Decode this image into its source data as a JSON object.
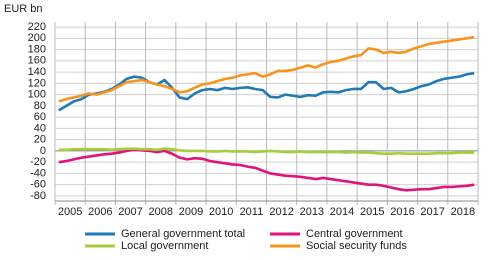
{
  "chart_data": {
    "type": "line",
    "y_label": "EUR bn",
    "categories": [
      "2005",
      null,
      null,
      null,
      "2006",
      null,
      null,
      null,
      "2007",
      null,
      null,
      null,
      "2008",
      null,
      null,
      null,
      "2009",
      null,
      null,
      null,
      "2010",
      null,
      null,
      null,
      "2011",
      null,
      null,
      null,
      "2012",
      null,
      null,
      null,
      "2013",
      null,
      null,
      null,
      "2014",
      null,
      null,
      null,
      "2015",
      null,
      null,
      null,
      "2016",
      null,
      null,
      null,
      "2017",
      null,
      null,
      null,
      "2018",
      null,
      null,
      null
    ],
    "series": [
      {
        "name": "General government total",
        "color": "#1f7ab5",
        "values": [
          72,
          80,
          88,
          92,
          100,
          102,
          105,
          110,
          118,
          128,
          132,
          130,
          122,
          118,
          126,
          112,
          95,
          92,
          102,
          108,
          110,
          108,
          112,
          110,
          112,
          113,
          110,
          108,
          96,
          95,
          100,
          98,
          96,
          99,
          98,
          104,
          105,
          104,
          108,
          110,
          110,
          122,
          122,
          110,
          112,
          104,
          106,
          110,
          115,
          118,
          124,
          128,
          130,
          132,
          136,
          138
        ]
      },
      {
        "name": "Central government",
        "color": "#e0147d",
        "values": [
          -20,
          -18,
          -15,
          -12,
          -10,
          -8,
          -6,
          -5,
          -3,
          0,
          2,
          1,
          0,
          -2,
          0,
          -5,
          -12,
          -15,
          -13,
          -14,
          -18,
          -20,
          -22,
          -24,
          -25,
          -28,
          -30,
          -35,
          -40,
          -42,
          -44,
          -45,
          -46,
          -48,
          -50,
          -48,
          -50,
          -52,
          -54,
          -56,
          -58,
          -60,
          -60,
          -62,
          -65,
          -68,
          -70,
          -69,
          -68,
          -68,
          -66,
          -64,
          -64,
          -63,
          -62,
          -60
        ]
      },
      {
        "name": "Local government",
        "color": "#a6ce39",
        "values": [
          2,
          2,
          3,
          3,
          3,
          3,
          3,
          2,
          3,
          4,
          4,
          3,
          3,
          2,
          4,
          3,
          1,
          0,
          0,
          0,
          -1,
          -1,
          0,
          -1,
          -1,
          -1,
          -2,
          -1,
          0,
          -1,
          -2,
          -2,
          -1,
          -2,
          -2,
          -2,
          -2,
          -2,
          -3,
          -2,
          -3,
          -3,
          -4,
          -5,
          -5,
          -4,
          -5,
          -5,
          -5,
          -5,
          -4,
          -4,
          -4,
          -3,
          -3,
          -3
        ]
      },
      {
        "name": "Social security funds",
        "color": "#f7941d",
        "values": [
          88,
          92,
          95,
          98,
          102,
          100,
          104,
          108,
          115,
          122,
          124,
          126,
          122,
          118,
          115,
          110,
          104,
          106,
          112,
          118,
          120,
          124,
          128,
          130,
          134,
          136,
          138,
          132,
          136,
          142,
          142,
          144,
          148,
          152,
          148,
          154,
          158,
          160,
          164,
          168,
          170,
          182,
          180,
          174,
          176,
          174,
          176,
          182,
          186,
          190,
          192,
          194,
          196,
          198,
          200,
          202
        ]
      }
    ],
    "ylim": [
      -89,
      229
    ],
    "yticks": [
      -80,
      -60,
      -40,
      -20,
      0,
      20,
      40,
      60,
      80,
      100,
      120,
      140,
      160,
      180,
      200,
      220
    ],
    "grid": true
  }
}
